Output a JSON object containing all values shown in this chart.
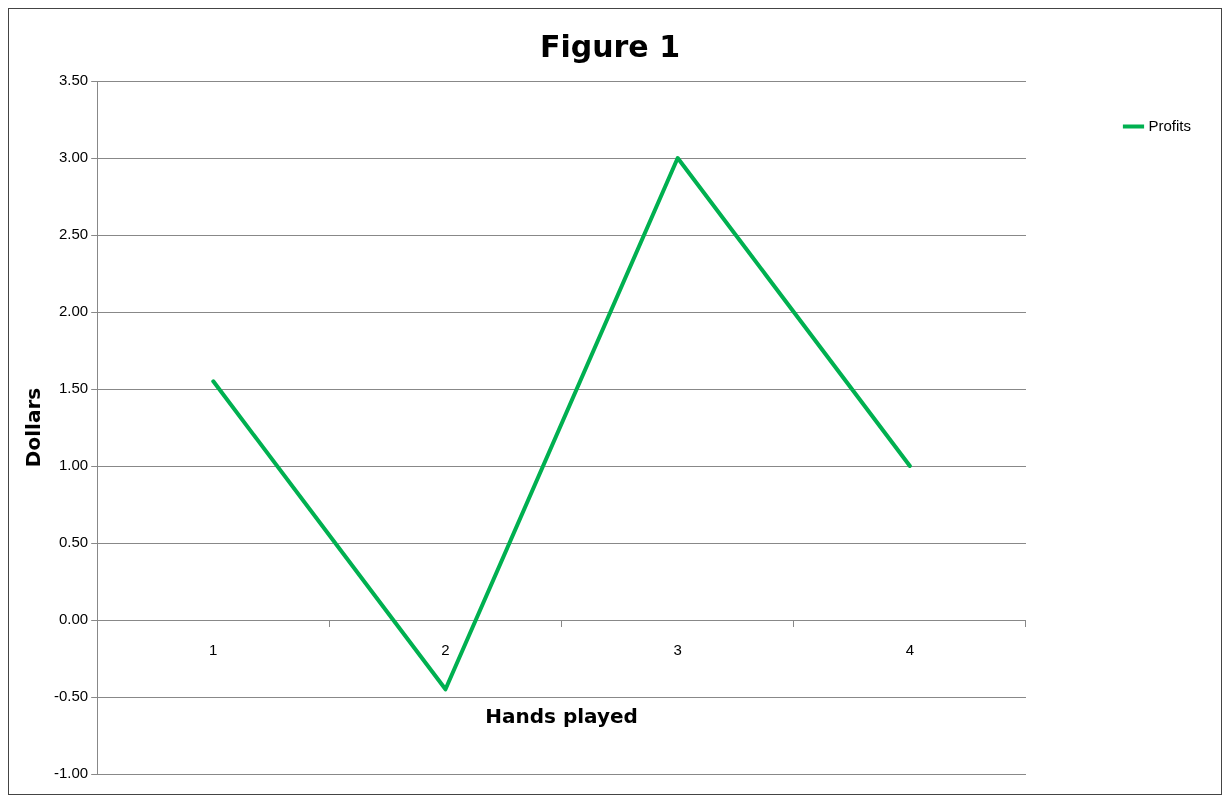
{
  "chart_data": {
    "type": "line",
    "title": "Figure 1",
    "xlabel": "Hands played",
    "ylabel": "Dollars",
    "categories": [
      "1",
      "2",
      "3",
      "4"
    ],
    "series": [
      {
        "name": "Profits",
        "color": "#00b050",
        "values": [
          1.55,
          -0.45,
          3.0,
          1.0
        ]
      }
    ],
    "ylim": [
      -1,
      3.5
    ],
    "yticks": [
      {
        "value": -1,
        "label": "-1.00"
      },
      {
        "value": -0.5,
        "label": "-0.50"
      },
      {
        "value": 0,
        "label": "0.00"
      },
      {
        "value": 0.5,
        "label": "0.50"
      },
      {
        "value": 1,
        "label": "1.00"
      },
      {
        "value": 1.5,
        "label": "1.50"
      },
      {
        "value": 2,
        "label": "2.00"
      },
      {
        "value": 2.5,
        "label": "2.50"
      },
      {
        "value": 3,
        "label": "3.00"
      },
      {
        "value": 3.5,
        "label": "3.50"
      }
    ],
    "grid": "y",
    "legend": "right",
    "marker": "none",
    "line_style": "solid"
  }
}
